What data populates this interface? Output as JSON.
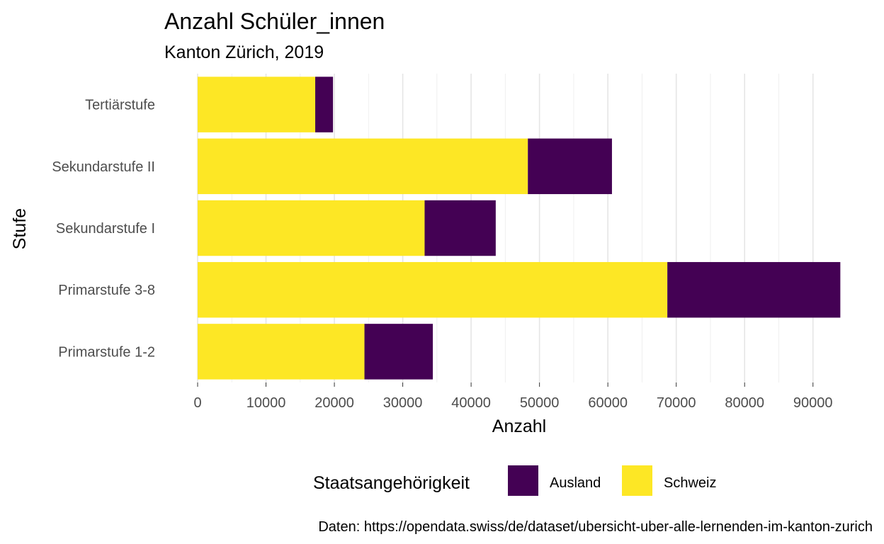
{
  "chart_data": {
    "type": "bar",
    "orientation": "horizontal",
    "stacked": true,
    "title": "Anzahl Schüler_innen",
    "subtitle": "Kanton Zürich, 2019",
    "xlabel": "Anzahl",
    "ylabel": "Stufe",
    "categories": [
      "Tertiärstufe",
      "Sekundarstufe II",
      "Sekundarstufe I",
      "Primarstufe 3-8",
      "Primarstufe 1-2"
    ],
    "series": [
      {
        "name": "Schweiz",
        "color": "#FDE725",
        "values": [
          17200,
          48300,
          33200,
          68700,
          24400
        ]
      },
      {
        "name": "Ausland",
        "color": "#440154",
        "values": [
          2600,
          12300,
          10400,
          25300,
          10000
        ]
      }
    ],
    "xlim": [
      0,
      95000
    ],
    "xticks": [
      0,
      10000,
      20000,
      30000,
      40000,
      50000,
      60000,
      70000,
      80000,
      90000
    ],
    "grid": true,
    "legend": {
      "title": "Staatsangehörigkeit",
      "position": "bottom",
      "items": [
        {
          "label": "Ausland",
          "color": "#440154"
        },
        {
          "label": "Schweiz",
          "color": "#FDE725"
        }
      ]
    },
    "caption": "Daten: https://opendata.swiss/de/dataset/ubersicht-uber-alle-lernenden-im-kanton-zurich"
  }
}
